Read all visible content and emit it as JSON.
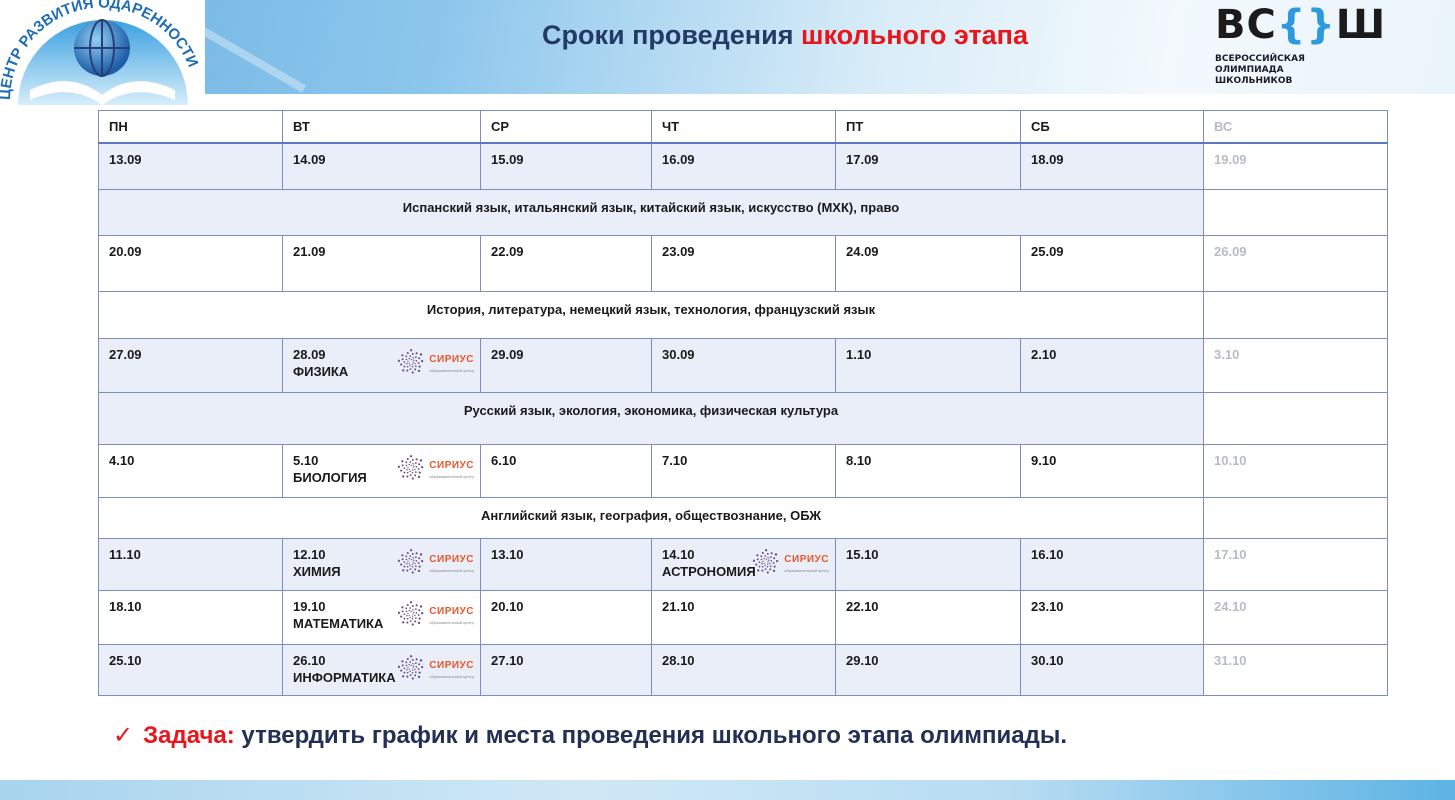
{
  "header": {
    "title_part1": "Сроки проведения",
    "title_part2": "школьного этапа",
    "logo_left_text": "ЦЕНТР РАЗВИТИЯ ОДАРЕННОСТИ",
    "logo_right_big": "ВС{}Ш",
    "logo_right_lines": [
      "ВСЕРОССИЙСКАЯ",
      "ОЛИМПИАДА",
      "ШКОЛЬНИКОВ"
    ]
  },
  "colors": {
    "accent_red": "#e8161b",
    "title_navy": "#233a66",
    "table_border": "#7a8ec0",
    "row_shade": "#e9eef8",
    "sirius_orange": "#e8572a"
  },
  "table": {
    "days": [
      "ПН",
      "ВТ",
      "СР",
      "ЧТ",
      "ПТ",
      "СБ",
      "ВС"
    ],
    "rows": [
      {
        "type": "week",
        "shade": true,
        "cells": [
          {
            "date": "13.09"
          },
          {
            "date": "14.09"
          },
          {
            "date": "15.09"
          },
          {
            "date": "16.09"
          },
          {
            "date": "17.09"
          },
          {
            "date": "18.09"
          },
          {
            "date": "19.09"
          }
        ]
      },
      {
        "type": "subjects",
        "shade": true,
        "text": "Испанский язык, итальянский язык, китайский язык, искусство (МХК), право"
      },
      {
        "type": "week",
        "shade": false,
        "cells": [
          {
            "date": "20.09"
          },
          {
            "date": "21.09"
          },
          {
            "date": "22.09"
          },
          {
            "date": "23.09"
          },
          {
            "date": "24.09"
          },
          {
            "date": "25.09"
          },
          {
            "date": "26.09"
          }
        ]
      },
      {
        "type": "subjects",
        "shade": false,
        "text": "История, литература, немецкий язык, технология, французский язык"
      },
      {
        "type": "week",
        "shade": true,
        "cells": [
          {
            "date": "27.09"
          },
          {
            "date": "28.09",
            "subject": "ФИЗИКА",
            "sirius": true
          },
          {
            "date": "29.09"
          },
          {
            "date": "30.09"
          },
          {
            "date": "1.10"
          },
          {
            "date": "2.10"
          },
          {
            "date": "3.10"
          }
        ]
      },
      {
        "type": "subjects",
        "shade": true,
        "text": "Русский язык, экология, экономика, физическая культура"
      },
      {
        "type": "week",
        "shade": false,
        "cells": [
          {
            "date": "4.10"
          },
          {
            "date": "5.10",
            "subject": "БИОЛОГИЯ",
            "sirius": true
          },
          {
            "date": "6.10"
          },
          {
            "date": "7.10"
          },
          {
            "date": "8.10"
          },
          {
            "date": "9.10"
          },
          {
            "date": "10.10"
          }
        ]
      },
      {
        "type": "subjects",
        "shade": false,
        "text": "Английский язык, география, обществознание, ОБЖ"
      },
      {
        "type": "week",
        "shade": true,
        "cells": [
          {
            "date": "11.10"
          },
          {
            "date": "12.10",
            "subject": "ХИМИЯ",
            "sirius": true
          },
          {
            "date": "13.10"
          },
          {
            "date": "14.10",
            "subject": "АСТРОНОМИЯ",
            "sirius": true
          },
          {
            "date": "15.10"
          },
          {
            "date": "16.10"
          },
          {
            "date": "17.10"
          }
        ]
      },
      {
        "type": "week",
        "shade": false,
        "cells": [
          {
            "date": "18.10"
          },
          {
            "date": "19.10",
            "subject": "МАТЕМАТИКА",
            "sirius": true
          },
          {
            "date": "20.10"
          },
          {
            "date": "21.10"
          },
          {
            "date": "22.10"
          },
          {
            "date": "23.10"
          },
          {
            "date": "24.10"
          }
        ]
      },
      {
        "type": "week",
        "shade": true,
        "cells": [
          {
            "date": "25.10"
          },
          {
            "date": "26.10",
            "subject": "ИНФОРМАТИКА",
            "sirius": true
          },
          {
            "date": "27.10"
          },
          {
            "date": "28.10"
          },
          {
            "date": "29.10"
          },
          {
            "date": "30.10"
          },
          {
            "date": "31.10"
          }
        ]
      }
    ],
    "sirius_label": "СИРИУС",
    "sirius_sub": "образовательный центр"
  },
  "task": {
    "label": "Задача:",
    "text": "утвердить график и места проведения школьного этапа олимпиады."
  }
}
